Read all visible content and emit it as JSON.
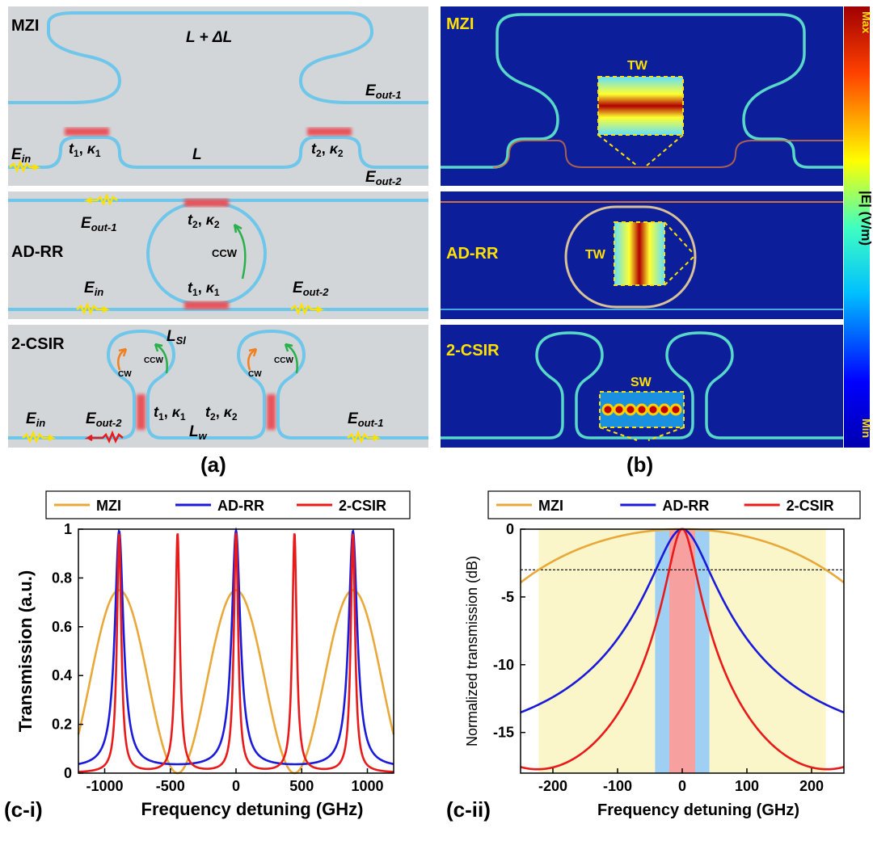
{
  "panel_a": {
    "label": "(a)",
    "mzi": {
      "title": "MZI",
      "long_arm": "L + ΔL",
      "short_arm": "L",
      "ein": "E",
      "ein_sub": "in",
      "eout1": "E",
      "eout1_sub": "out-1",
      "eout2": "E",
      "eout2_sub": "out-2",
      "t1": "t",
      "t1_sub": "1",
      "k1": "κ",
      "k1_sub": "1",
      "t2": "t",
      "t2_sub": "2",
      "k2": "κ",
      "k2_sub": "2"
    },
    "adrr": {
      "title": "AD-RR",
      "ein": "E",
      "ein_sub": "in",
      "eout1": "E",
      "eout1_sub": "out-1",
      "eout2": "E",
      "eout2_sub": "out-2",
      "ccw": "CCW",
      "t1": "t",
      "t1_sub": "1",
      "k1": "κ",
      "k1_sub": "1",
      "t2": "t",
      "t2_sub": "2",
      "k2": "κ",
      "k2_sub": "2"
    },
    "csir": {
      "title": "2-CSIR",
      "ein": "E",
      "ein_sub": "in",
      "eout1": "E",
      "eout1_sub": "out-1",
      "eout2": "E",
      "eout2_sub": "out-2",
      "lsl": "L",
      "lsl_sub": "Sl",
      "lw": "L",
      "lw_sub": "w",
      "cw": "CW",
      "ccw": "CCW",
      "t1": "t",
      "t1_sub": "1",
      "k1": "κ",
      "k1_sub": "1",
      "t2": "t",
      "t2_sub": "2",
      "k2": "κ",
      "k2_sub": "2"
    }
  },
  "panel_b": {
    "label": "(b)",
    "mzi": {
      "title": "MZI",
      "inset": "TW"
    },
    "adrr": {
      "title": "AD-RR",
      "inset": "TW"
    },
    "csir": {
      "title": "2-CSIR",
      "inset": "SW"
    },
    "colorbar": {
      "max": "Max",
      "min": "Min",
      "label": "|E| (V/m)"
    }
  },
  "colors": {
    "mzi": "#e8a93a",
    "adrr": "#1a1adb",
    "csir": "#e81a1a",
    "waveguide": "#6ec6ea",
    "bg_gray": "#d3d6d9"
  },
  "chart_data": [
    {
      "type": "line",
      "panel_label": "(c-i)",
      "legend": [
        "MZI",
        "AD-RR",
        "2-CSIR"
      ],
      "xlabel": "Frequency detuning (GHz)",
      "ylabel": "Transmission (a.u.)",
      "xlim": [
        -1200,
        1200
      ],
      "ylim": [
        0,
        1
      ],
      "xticks": [
        -1000,
        -500,
        0,
        500,
        1000
      ],
      "yticks": [
        0,
        0.2,
        0.4,
        0.6,
        0.8,
        1
      ],
      "xtick_labels": [
        "-1000",
        "-500",
        "0",
        "500",
        "1000"
      ],
      "ytick_labels": [
        "0",
        "0.2",
        "0.4",
        "0.6",
        "0.8",
        "1"
      ],
      "series": [
        {
          "name": "MZI",
          "model": "cos2",
          "fsr": 890,
          "peaks": [
            -890,
            0,
            890
          ],
          "peak": 0.75,
          "min": 0.0
        },
        {
          "name": "AD-RR",
          "model": "lorentz",
          "peaks": [
            -890,
            0,
            890
          ],
          "peak": 0.99,
          "hwhm": 40,
          "floor": 0.02
        },
        {
          "name": "2-CSIR",
          "model": "lorentz",
          "peaks": [
            -890,
            -445,
            0,
            445,
            890
          ],
          "peak": 0.98,
          "hwhm": 20,
          "floor": 0.0
        }
      ]
    },
    {
      "type": "line",
      "panel_label": "(c-ii)",
      "legend": [
        "MZI",
        "AD-RR",
        "2-CSIR"
      ],
      "xlabel": "Frequency detuning (GHz)",
      "ylabel": "Normalized transmission (dB)",
      "xlim": [
        -250,
        250
      ],
      "ylim": [
        -18,
        0
      ],
      "xticks": [
        -200,
        -100,
        0,
        100,
        200
      ],
      "yticks": [
        0,
        -5,
        -10,
        -15
      ],
      "xtick_labels": [
        "-200",
        "-100",
        "0",
        "100",
        "200"
      ],
      "ytick_labels": [
        "0",
        "-5",
        "-10",
        "-15"
      ],
      "reference_line_db": -3,
      "bands": [
        {
          "name": "MZI",
          "range": [
            -222,
            222
          ],
          "color": "#fbf6c9"
        },
        {
          "name": "AD-RR",
          "range": [
            -42,
            42
          ],
          "color": "#9fd0f4"
        },
        {
          "name": "2-CSIR",
          "range": [
            -20,
            20
          ],
          "color": "#f7a0a0"
        }
      ],
      "series": [
        {
          "name": "MZI",
          "model": "cos2",
          "fsr": 890
        },
        {
          "name": "AD-RR",
          "model": "lorentz_db",
          "hwhm": 40,
          "floor": 0.02
        },
        {
          "name": "2-CSIR",
          "model": "lorentz_db",
          "hwhm": 20,
          "floor": 0.0,
          "neighbors": [
            -445,
            445
          ]
        }
      ]
    }
  ]
}
